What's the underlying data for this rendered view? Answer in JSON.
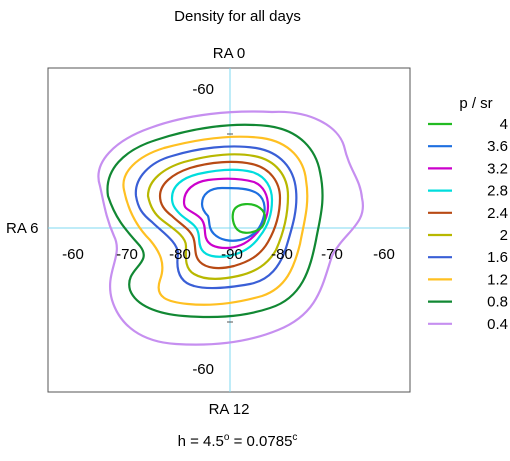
{
  "title": "Density for all days",
  "footer": {
    "text": "h = 4.5",
    "deg": "o",
    "mid": " = 0.0785",
    "rad": "c"
  },
  "chart_data": {
    "type": "contour",
    "title": "Density for all days",
    "axes": {
      "top_label": "RA 0",
      "bottom_label": "RA 12",
      "left_label": "RA 6"
    },
    "x_tick_labels": [
      "-60",
      "-70",
      "-80",
      "-90",
      "-80",
      "-70",
      "-60"
    ],
    "y_tick_labels": [
      "-60",
      "-60"
    ],
    "legend": {
      "title": "p / sr",
      "placement": "right",
      "entries": [
        {
          "value": "4",
          "color": "#22bb22"
        },
        {
          "value": "3.6",
          "color": "#1e6fe0"
        },
        {
          "value": "3.2",
          "color": "#cc00cc"
        },
        {
          "value": "2.8",
          "color": "#00dddd"
        },
        {
          "value": "2.4",
          "color": "#b84a14"
        },
        {
          "value": "2",
          "color": "#b8b800"
        },
        {
          "value": "1.6",
          "color": "#3a5fd6"
        },
        {
          "value": "1.2",
          "color": "#ffc022"
        },
        {
          "value": "0.8",
          "color": "#118833"
        },
        {
          "value": "0.4",
          "color": "#c68ff0"
        }
      ]
    }
  }
}
